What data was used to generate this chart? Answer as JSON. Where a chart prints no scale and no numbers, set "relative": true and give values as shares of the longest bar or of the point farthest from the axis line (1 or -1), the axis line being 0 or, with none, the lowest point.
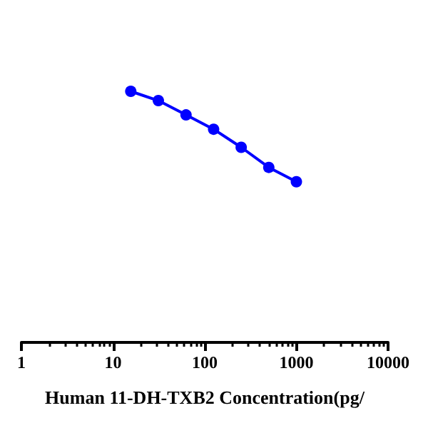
{
  "chart_data": {
    "type": "line",
    "xlabel": "Human 11-DH-TXB2 Concentration(pg/",
    "log": "x",
    "relative": true,
    "x": [
      15.6,
      31.2,
      62.5,
      125,
      250,
      500,
      1000
    ],
    "series": [
      {
        "color": "#0000ff",
        "values": [
          1,
          0.963,
          0.906,
          0.849,
          0.777,
          0.697,
          0.64
        ]
      }
    ],
    "xlim": [
      1,
      10000
    ],
    "xticks": [
      1,
      10,
      100,
      1000,
      10000
    ],
    "marker": "circle",
    "line_style": "solid",
    "grid": false
  }
}
